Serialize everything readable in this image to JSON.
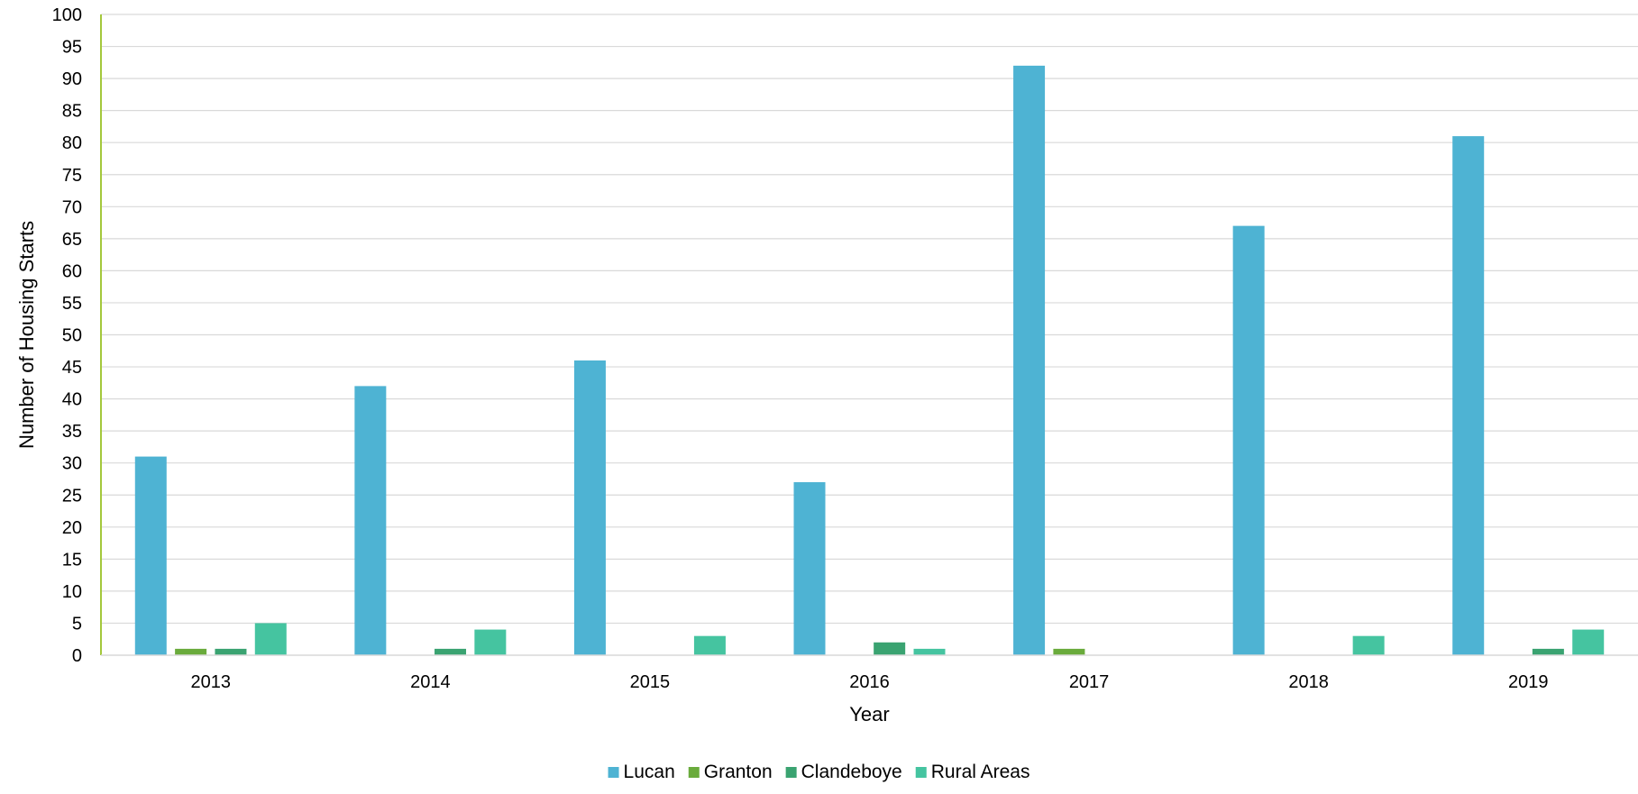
{
  "chart_data": {
    "type": "bar",
    "title": "",
    "xlabel": "Year",
    "ylabel": "Number of Housing Starts",
    "categories": [
      "2013",
      "2014",
      "2015",
      "2016",
      "2017",
      "2018",
      "2019"
    ],
    "series": [
      {
        "name": "Lucan",
        "color": "#4eb3d3",
        "values": [
          31,
          42,
          46,
          27,
          92,
          67,
          81
        ]
      },
      {
        "name": "Granton",
        "color": "#6aab3c",
        "values": [
          1,
          0,
          0,
          0,
          1,
          0,
          0
        ]
      },
      {
        "name": "Clandeboye",
        "color": "#3aa371",
        "values": [
          1,
          1,
          0,
          2,
          0,
          0,
          1
        ]
      },
      {
        "name": "Rural Areas",
        "color": "#45c4a0",
        "values": [
          5,
          4,
          3,
          1,
          0,
          3,
          4
        ]
      }
    ],
    "ylim": [
      0,
      100
    ],
    "ytick_step": 5,
    "grid": true,
    "legend_position": "bottom-center",
    "axis_color": "#a4c83c",
    "grid_color": "#d9d9d9"
  }
}
